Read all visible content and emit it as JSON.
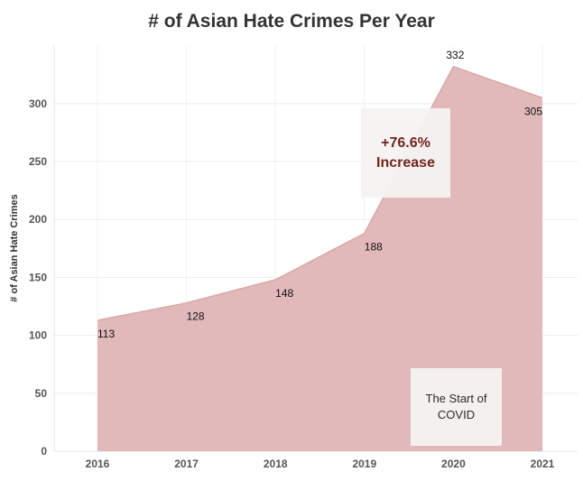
{
  "chart_data": {
    "type": "area",
    "title": "# of Asian Hate Crimes Per Year",
    "xlabel": "",
    "ylabel": "# of Asian Hate Crimes",
    "x": [
      "2016",
      "2017",
      "2018",
      "2019",
      "2020",
      "2021"
    ],
    "values": [
      113,
      128,
      148,
      188,
      332,
      305
    ],
    "data_labels": [
      "113",
      "128",
      "148",
      "188",
      "332",
      "305"
    ],
    "yticks": [
      0,
      50,
      100,
      150,
      200,
      250,
      300
    ],
    "ylim": [
      0,
      345
    ],
    "grid": true,
    "fill_color": "#e2b9ba",
    "line_color": "#d9a6a8",
    "annotations": [
      {
        "text_lines": [
          "+76.6%",
          "Increase"
        ],
        "color": "#6b1a12"
      },
      {
        "text_lines": [
          "The Start of",
          "COVID"
        ],
        "color": "#222222"
      }
    ]
  }
}
